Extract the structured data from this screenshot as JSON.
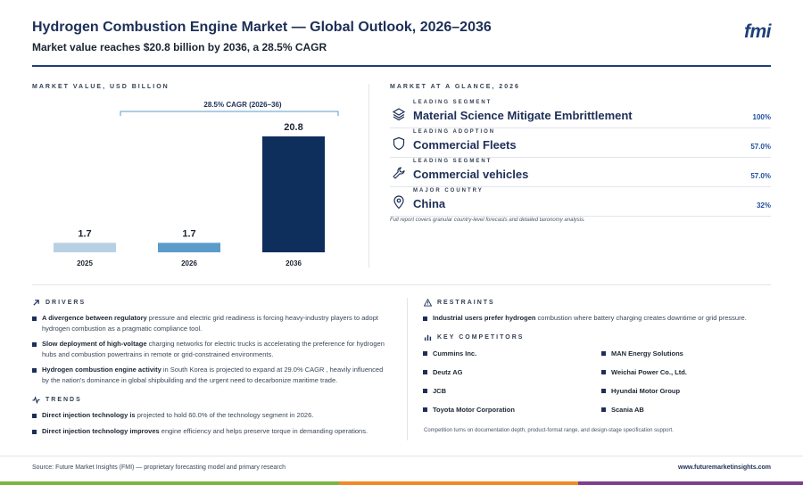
{
  "header": {
    "title": "Hydrogen Combustion Engine Market — Global Outlook, 2026–2036",
    "subtitle": "Market value reaches $20.8 billion by 2036, a 28.5% CAGR",
    "logo": "fmi"
  },
  "chart_section": {
    "label": "MARKET VALUE, USD BILLION"
  },
  "chart_data": {
    "type": "bar",
    "categories": [
      "2025",
      "2026",
      "2036"
    ],
    "values": [
      1.7,
      1.7,
      20.8
    ],
    "value_labels": [
      "1.7",
      "1.7",
      "20.8"
    ],
    "colors": [
      "#b8d0e4",
      "#5b9bc9",
      "#0e2e5c"
    ],
    "annotation": "28.5% CAGR (2026–36)",
    "ylim": [
      0,
      20.8
    ],
    "grid": false
  },
  "glance": {
    "label": "MARKET AT A GLANCE, 2026",
    "items": [
      {
        "small": "LEADING SEGMENT",
        "main": "Material Science Mitigate Embrittlement",
        "value": "100%",
        "icon": "layers-icon"
      },
      {
        "small": "LEADING ADOPTION",
        "main": "Commercial Fleets",
        "value": "57.0%",
        "icon": "shield-icon"
      },
      {
        "small": "LEADING SEGMENT",
        "main": "Commercial vehicles",
        "value": "57.0%",
        "icon": "wrench-icon"
      },
      {
        "small": "MAJOR COUNTRY",
        "main": "China",
        "value": "32%",
        "icon": "location-pin-icon"
      }
    ],
    "note": "Full report covers granular country-level forecasts and detailed taxonomy analysis."
  },
  "drivers": {
    "label": "DRIVERS",
    "items": [
      {
        "bold": "A divergence between regulatory",
        "text": " pressure and electric grid readiness is forcing heavy-industry players to adopt hydrogen combustion as a pragmatic compliance tool."
      },
      {
        "bold": "Slow deployment of high-voltage",
        "text": " charging networks for electric trucks is accelerating the preference for hydrogen hubs and combustion powertrains in remote or grid-constrained environments."
      },
      {
        "bold": "Hydrogen combustion engine activity",
        "text": " in South Korea is projected to expand at 29.0% CAGR , heavily influenced by the nation's dominance in global shipbuilding and the urgent need to decarbonize maritime trade."
      }
    ]
  },
  "trends": {
    "label": "TRENDS",
    "items": [
      {
        "bold": "Direct injection technology is",
        "text": " projected to hold 60.0% of the technology segment in 2026."
      },
      {
        "bold": "Direct injection technology improves",
        "text": " engine efficiency and helps preserve torque in demanding operations."
      }
    ]
  },
  "restraints": {
    "label": "RESTRAINTS",
    "items": [
      {
        "bold": "Industrial users prefer hydrogen",
        "text": " combustion where battery charging creates downtime or grid pressure."
      }
    ]
  },
  "competitors": {
    "label": "KEY COMPETITORS",
    "items": [
      "Cummins Inc.",
      "MAN Energy Solutions",
      "Deutz AG",
      "Weichai Power Co., Ltd.",
      "JCB",
      "Hyundai Motor Group",
      "Toyota Motor Corporation",
      "Scania AB"
    ],
    "note": "Competition turns on documentation depth, product-format range, and design-stage specification support."
  },
  "footer": {
    "source": "Source: Future Market Insights (FMI) — proprietary forecasting model and primary research",
    "url": "www.futuremarketinsights.com"
  },
  "colors": {
    "navy": "#1d2f57",
    "accent_blue": "#1f4fa0",
    "stripe_green": "#7cb342",
    "stripe_orange": "#f08a24",
    "stripe_purple": "#7b3f8c"
  }
}
